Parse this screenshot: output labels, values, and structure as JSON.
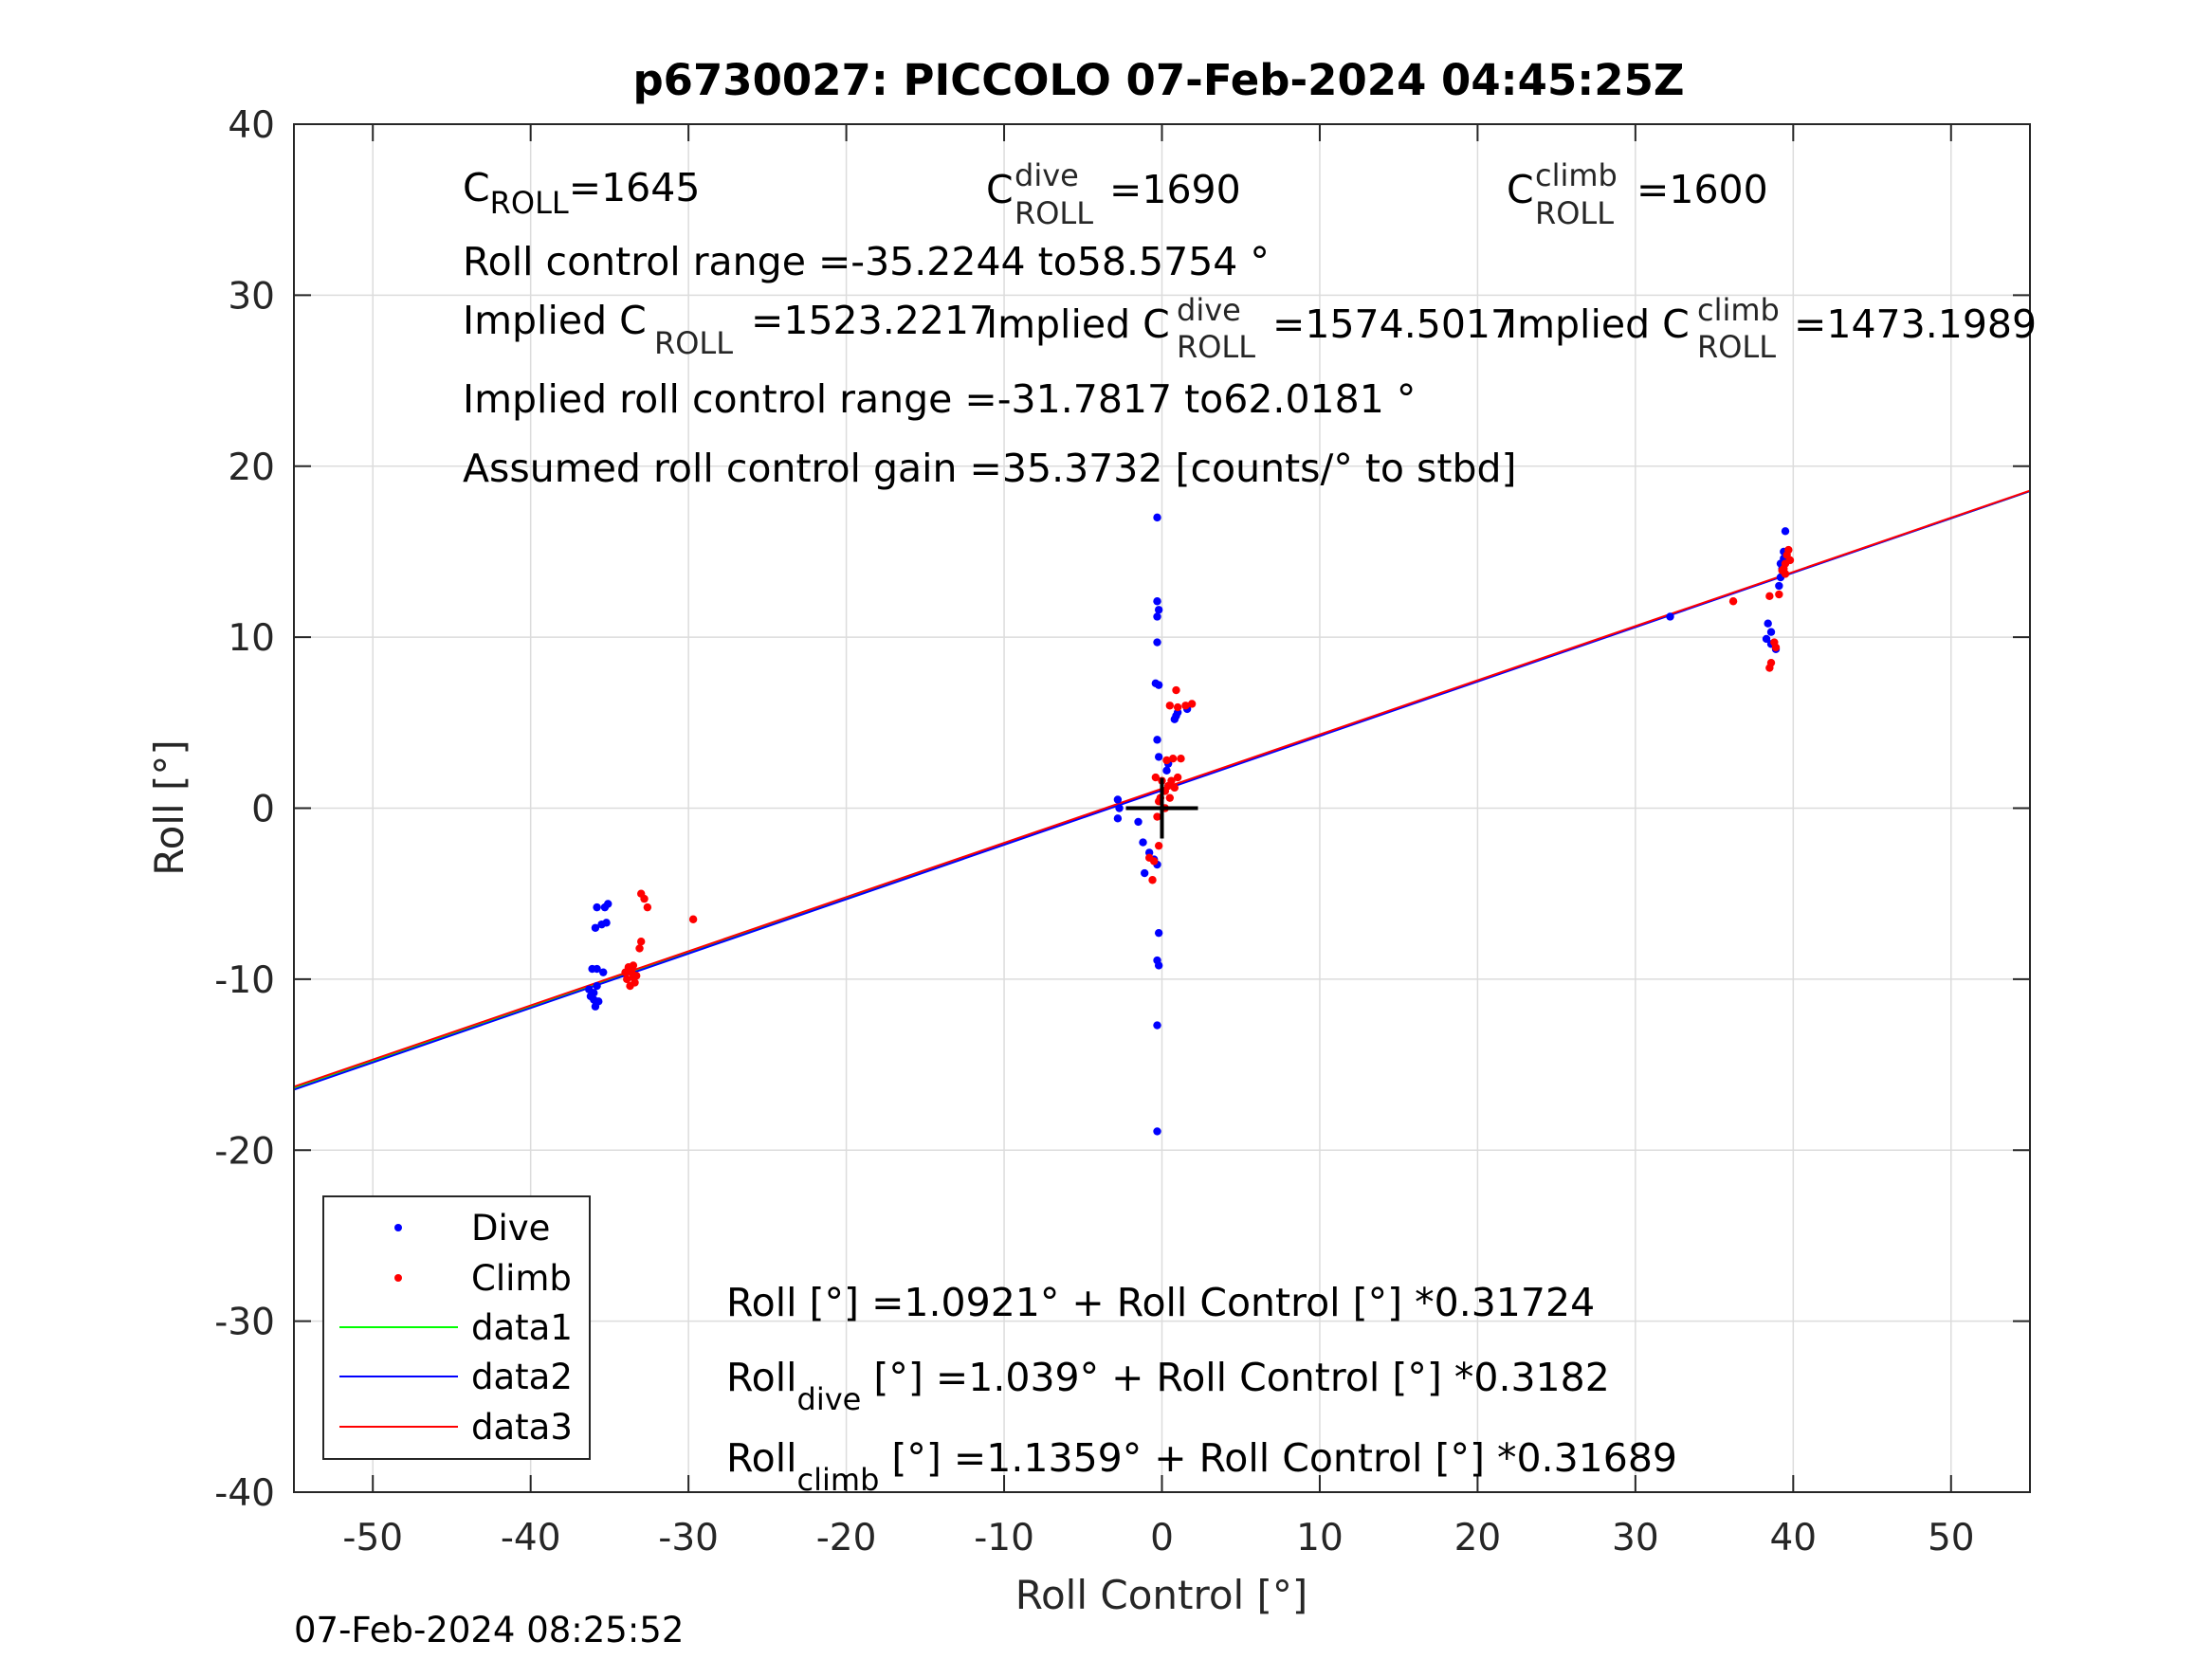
{
  "chart_data": {
    "type": "scatter",
    "title": "p6730027: PICCOLO 07-Feb-2024 04:45:25Z",
    "xlabel": "Roll Control [°]",
    "ylabel": "Roll [°]",
    "xlim": [
      -55,
      55
    ],
    "ylim": [
      -40,
      40
    ],
    "xticks": [
      -50,
      -40,
      -30,
      -20,
      -10,
      0,
      10,
      20,
      30,
      40,
      50
    ],
    "yticks": [
      -40,
      -30,
      -20,
      -10,
      0,
      10,
      20,
      30,
      40
    ],
    "grid": true,
    "legend_position": "bottom-left",
    "series": [
      {
        "name": "Dive",
        "kind": "points",
        "color": "#0000ff",
        "points": [
          [
            -36.3,
            -10.6
          ],
          [
            -36.1,
            -10.9
          ],
          [
            -36.0,
            -11.2
          ],
          [
            -35.9,
            -11.6
          ],
          [
            -36.2,
            -11.0
          ],
          [
            -35.8,
            -10.4
          ],
          [
            -36.0,
            -10.8
          ],
          [
            -35.7,
            -11.3
          ],
          [
            -36.1,
            -9.4
          ],
          [
            -35.8,
            -9.4
          ],
          [
            -35.4,
            -9.6
          ],
          [
            -35.9,
            -7.0
          ],
          [
            -35.5,
            -6.8
          ],
          [
            -35.2,
            -6.7
          ],
          [
            -35.8,
            -5.8
          ],
          [
            -35.3,
            -5.8
          ],
          [
            -35.1,
            -5.6
          ],
          [
            -2.8,
            0.5
          ],
          [
            -2.7,
            0.0
          ],
          [
            -2.8,
            -0.6
          ],
          [
            -1.5,
            -0.8
          ],
          [
            -1.2,
            -2.0
          ],
          [
            -0.8,
            -2.6
          ],
          [
            -0.5,
            -3.0
          ],
          [
            -0.3,
            -3.3
          ],
          [
            -1.1,
            -3.8
          ],
          [
            -0.3,
            17.0
          ],
          [
            -0.3,
            12.1
          ],
          [
            -0.2,
            11.6
          ],
          [
            -0.3,
            11.2
          ],
          [
            -0.3,
            9.7
          ],
          [
            -0.4,
            7.3
          ],
          [
            -0.2,
            7.2
          ],
          [
            -0.3,
            4.0
          ],
          [
            -0.2,
            3.0
          ],
          [
            0.3,
            2.2
          ],
          [
            0.4,
            2.6
          ],
          [
            0.8,
            5.2
          ],
          [
            1.0,
            5.6
          ],
          [
            1.6,
            5.8
          ],
          [
            0.9,
            5.4
          ],
          [
            -0.2,
            -7.3
          ],
          [
            -0.3,
            -8.9
          ],
          [
            -0.2,
            -9.2
          ],
          [
            -0.3,
            -12.7
          ],
          [
            -0.3,
            -18.9
          ],
          [
            32.2,
            11.2
          ],
          [
            38.4,
            10.8
          ],
          [
            38.6,
            10.3
          ],
          [
            38.3,
            9.9
          ],
          [
            38.6,
            9.6
          ],
          [
            38.9,
            9.3
          ],
          [
            39.1,
            13.0
          ],
          [
            39.2,
            13.5
          ],
          [
            39.3,
            14.0
          ],
          [
            39.4,
            14.6
          ],
          [
            39.4,
            15.0
          ],
          [
            39.5,
            16.2
          ],
          [
            39.2,
            14.3
          ]
        ]
      },
      {
        "name": "Climb",
        "kind": "points",
        "color": "#ff0000",
        "points": [
          [
            -33.8,
            -9.3
          ],
          [
            -33.6,
            -9.6
          ],
          [
            -33.5,
            -9.9
          ],
          [
            -33.4,
            -10.2
          ],
          [
            -33.9,
            -10.0
          ],
          [
            -33.3,
            -9.8
          ],
          [
            -33.7,
            -10.4
          ],
          [
            -34.0,
            -9.6
          ],
          [
            -33.5,
            -9.2
          ],
          [
            -33.1,
            -8.2
          ],
          [
            -33.0,
            -7.8
          ],
          [
            -33.0,
            -5.0
          ],
          [
            -32.8,
            -5.3
          ],
          [
            -32.6,
            -5.8
          ],
          [
            -29.7,
            -6.5
          ],
          [
            -0.6,
            -4.2
          ],
          [
            -0.8,
            -2.9
          ],
          [
            -0.5,
            -3.1
          ],
          [
            -0.2,
            -2.2
          ],
          [
            -0.3,
            -0.5
          ],
          [
            -0.1,
            0.6
          ],
          [
            0.2,
            1.0
          ],
          [
            0.4,
            1.3
          ],
          [
            0.6,
            1.6
          ],
          [
            0.8,
            1.2
          ],
          [
            1.0,
            1.8
          ],
          [
            -0.4,
            1.8
          ],
          [
            -0.2,
            0.4
          ],
          [
            0.5,
            0.6
          ],
          [
            0.3,
            2.8
          ],
          [
            0.7,
            2.9
          ],
          [
            1.2,
            2.9
          ],
          [
            0.5,
            6.0
          ],
          [
            1.0,
            5.9
          ],
          [
            1.5,
            6.0
          ],
          [
            1.9,
            6.1
          ],
          [
            0.9,
            6.9
          ],
          [
            0.0,
            1.6
          ],
          [
            0.2,
            0.0
          ],
          [
            36.2,
            12.1
          ],
          [
            38.5,
            12.4
          ],
          [
            38.6,
            8.5
          ],
          [
            38.5,
            8.2
          ],
          [
            38.8,
            9.7
          ],
          [
            38.9,
            9.4
          ],
          [
            39.1,
            12.5
          ],
          [
            39.4,
            14.0
          ],
          [
            39.5,
            14.3
          ],
          [
            39.6,
            14.8
          ],
          [
            39.7,
            15.1
          ],
          [
            39.3,
            13.9
          ],
          [
            39.8,
            14.5
          ],
          [
            39.5,
            13.7
          ]
        ]
      },
      {
        "name": "data1",
        "kind": "line",
        "color": "#00ff00",
        "x": [
          -55,
          55
        ],
        "y": [
          -16.35,
          18.54
        ]
      },
      {
        "name": "data2",
        "kind": "line",
        "color": "#0000ff",
        "x": [
          -55,
          55
        ],
        "y": [
          -16.46,
          18.54
        ]
      },
      {
        "name": "data3",
        "kind": "line",
        "color": "#ff0000",
        "x": [
          -55,
          55
        ],
        "y": [
          -16.29,
          18.57
        ]
      }
    ],
    "origin_marker": "+"
  },
  "annotations": {
    "c_roll": {
      "base": "C",
      "sub": "ROLL",
      "value": "=1645"
    },
    "c_roll_dive": {
      "base": "C",
      "sup": "dive",
      "sub": "ROLL",
      "value": "=1690"
    },
    "c_roll_climb": {
      "base": "C",
      "sup": "climb",
      "sub": "ROLL",
      "value": "=1600"
    },
    "range_line": "Roll control range =-35.2244 to58.5754 °",
    "implied_c_roll": {
      "prefix": "Implied C",
      "sub": "ROLL",
      "value": "=1523.2217"
    },
    "implied_c_roll_dive": {
      "prefix": "Implied C",
      "sup": "dive",
      "sub": "ROLL",
      "value": "=1574.5017"
    },
    "implied_c_roll_climb": {
      "prefix": "Implied C",
      "sup": "climb",
      "sub": "ROLL",
      "value": "=1473.1989"
    },
    "implied_range_line": "Implied roll control range =-31.7817 to62.0181 °",
    "gain_line": "Assumed roll control gain =35.3732 [counts/° to stbd]",
    "fit_all": "Roll [°] =1.0921° + Roll Control [°] *0.31724",
    "fit_dive": {
      "prefix": "Roll",
      "sub": "dive",
      "rest": " [°] =1.039° + Roll Control [°] *0.3182"
    },
    "fit_climb": {
      "prefix": "Roll",
      "sub": "climb",
      "rest": " [°] =1.1359° + Roll Control [°] *0.31689"
    }
  },
  "timestamp": "07-Feb-2024 08:25:52"
}
